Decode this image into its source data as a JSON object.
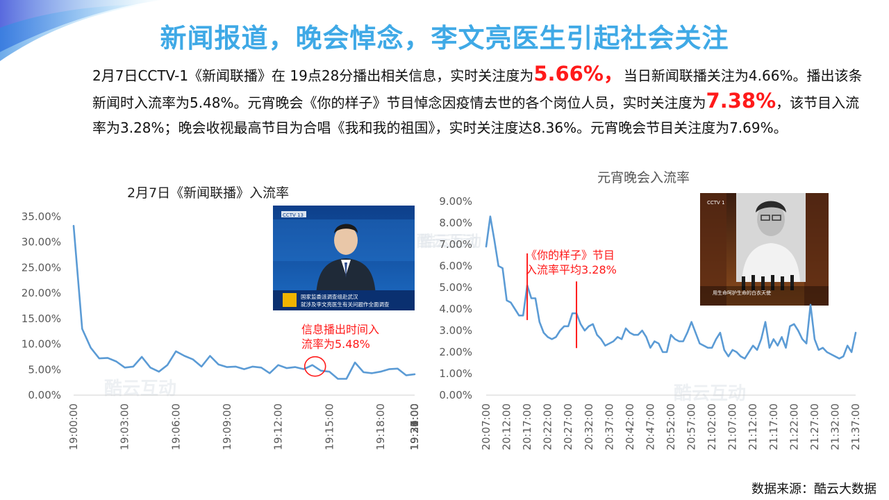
{
  "slide": {
    "title": "新闻报道，晚会悼念，李文亮医生引起社会关注",
    "summary": {
      "part1": "2月7日CCTV-1《新闻联播》在 19点28分播出相关信息，实时关注度为",
      "hl1": "5.66%，",
      "part2": "当日新闻联播关注为4.66%。播出该条新闻时入流率为5.48%。元宵晚会《你的样子》节目悼念因疫情去世的各个岗位人员，实时关注度为",
      "hl2": "7.38%",
      "part3": "，该节目入流率为3.28%；晚会收视最高节目为合唱《我和我的祖国》，实时关注度达8.36%。元宵晚会节目关注度为7.69%。"
    },
    "source": "数据来源：酷云大数据",
    "watermark": "酷云互动",
    "colors": {
      "title": "#3fa9e6",
      "line": "#5b9bd5",
      "highlight": "#ff1a1a"
    }
  },
  "photos": {
    "news": {
      "channel": "CCTV 13",
      "caption_line1": "国家监委派调查组赴武汉",
      "caption_line2": "就涉及李文亮医生有关问题作全面调查"
    },
    "gala": {
      "channel": "CCTV 1",
      "caption": "用生命呵护生命的白衣天使"
    }
  },
  "chart_data": [
    {
      "type": "line",
      "title": "2月7日《新闻联播》入流率",
      "ylim": [
        0,
        35
      ],
      "yticks": [
        0,
        5,
        10,
        15,
        20,
        25,
        30,
        35
      ],
      "ytick_labels": [
        "0.00%",
        "5.00%",
        "10.00%",
        "15.00%",
        "20.00%",
        "25.00%",
        "30.00%",
        "35.00%"
      ],
      "xtick_labels": [
        "19:00:00",
        "19:03:00",
        "19:06:00",
        "19:09:00",
        "19:12:00",
        "19:15:00",
        "19:18:00",
        "19:21:00",
        "19:24:00",
        "19:27:00",
        "19:30:00",
        "19:33:00",
        "19:36:00",
        "19:39:00"
      ],
      "x_start": "19:00:00",
      "x_interval": "30s",
      "grid": false,
      "values": [
        33.2,
        13.0,
        9.3,
        7.2,
        7.3,
        6.6,
        5.4,
        5.6,
        7.5,
        5.4,
        4.6,
        5.9,
        8.6,
        7.7,
        7.0,
        5.6,
        7.7,
        6.0,
        5.5,
        5.6,
        5.1,
        5.6,
        5.4,
        4.3,
        5.9,
        5.3,
        5.5,
        5.1,
        5.9,
        4.8,
        4.6,
        3.2,
        3.2,
        6.4,
        4.5,
        4.3,
        4.6,
        5.1,
        5.2,
        3.9,
        4.1
      ],
      "annotation": {
        "text_line1": "信息播出时间入",
        "text_line2": "流率为5.48%",
        "value": 5.48,
        "marker": "circle"
      }
    },
    {
      "type": "line",
      "title": "元宵晚会入流率",
      "ylim": [
        0,
        9
      ],
      "yticks": [
        0,
        1,
        2,
        3,
        4,
        5,
        6,
        7,
        8,
        9
      ],
      "ytick_labels": [
        "0.00%",
        "1.00%",
        "2.00%",
        "3.00%",
        "4.00%",
        "5.00%",
        "6.00%",
        "7.00%",
        "8.00%",
        "9.00%"
      ],
      "xtick_labels": [
        "20:07:00",
        "20:12:00",
        "20:17:00",
        "20:22:00",
        "20:27:00",
        "20:32:00",
        "20:37:00",
        "20:42:00",
        "20:47:00",
        "20:52:00",
        "20:57:00",
        "21:02:00",
        "21:07:00",
        "21:12:00",
        "21:17:00",
        "21:22:00",
        "21:27:00",
        "21:32:00",
        "21:37:00"
      ],
      "x_start": "20:07:00",
      "x_interval": "1min",
      "grid": false,
      "values": [
        6.9,
        8.3,
        7.2,
        6.0,
        5.9,
        4.4,
        4.3,
        4.0,
        3.7,
        3.7,
        5.1,
        4.5,
        4.5,
        3.4,
        2.9,
        2.7,
        2.6,
        2.7,
        3.0,
        3.2,
        3.2,
        3.8,
        3.8,
        3.3,
        3.0,
        3.2,
        3.3,
        2.8,
        2.6,
        2.3,
        2.4,
        2.5,
        2.7,
        2.6,
        3.1,
        2.9,
        2.8,
        2.8,
        3.0,
        2.7,
        2.2,
        2.5,
        2.4,
        2.0,
        2.0,
        2.8,
        2.6,
        2.5,
        2.5,
        2.9,
        3.4,
        2.9,
        2.4,
        2.3,
        2.2,
        2.2,
        2.6,
        2.9,
        2.1,
        1.8,
        2.1,
        2.0,
        1.8,
        1.7,
        2.0,
        2.3,
        2.1,
        2.6,
        3.4,
        2.2,
        2.6,
        2.3,
        2.7,
        2.2,
        3.2,
        3.3,
        3.0,
        2.6,
        2.4,
        4.2,
        2.6,
        2.1,
        2.2,
        2.0,
        1.9,
        1.8,
        1.7,
        1.8,
        2.3,
        2.0,
        2.9
      ],
      "annotation": {
        "text_line1": "《你的样子》节目",
        "text_line2": "入流率平均3.28%",
        "marker": "two vertical red lines"
      }
    }
  ]
}
